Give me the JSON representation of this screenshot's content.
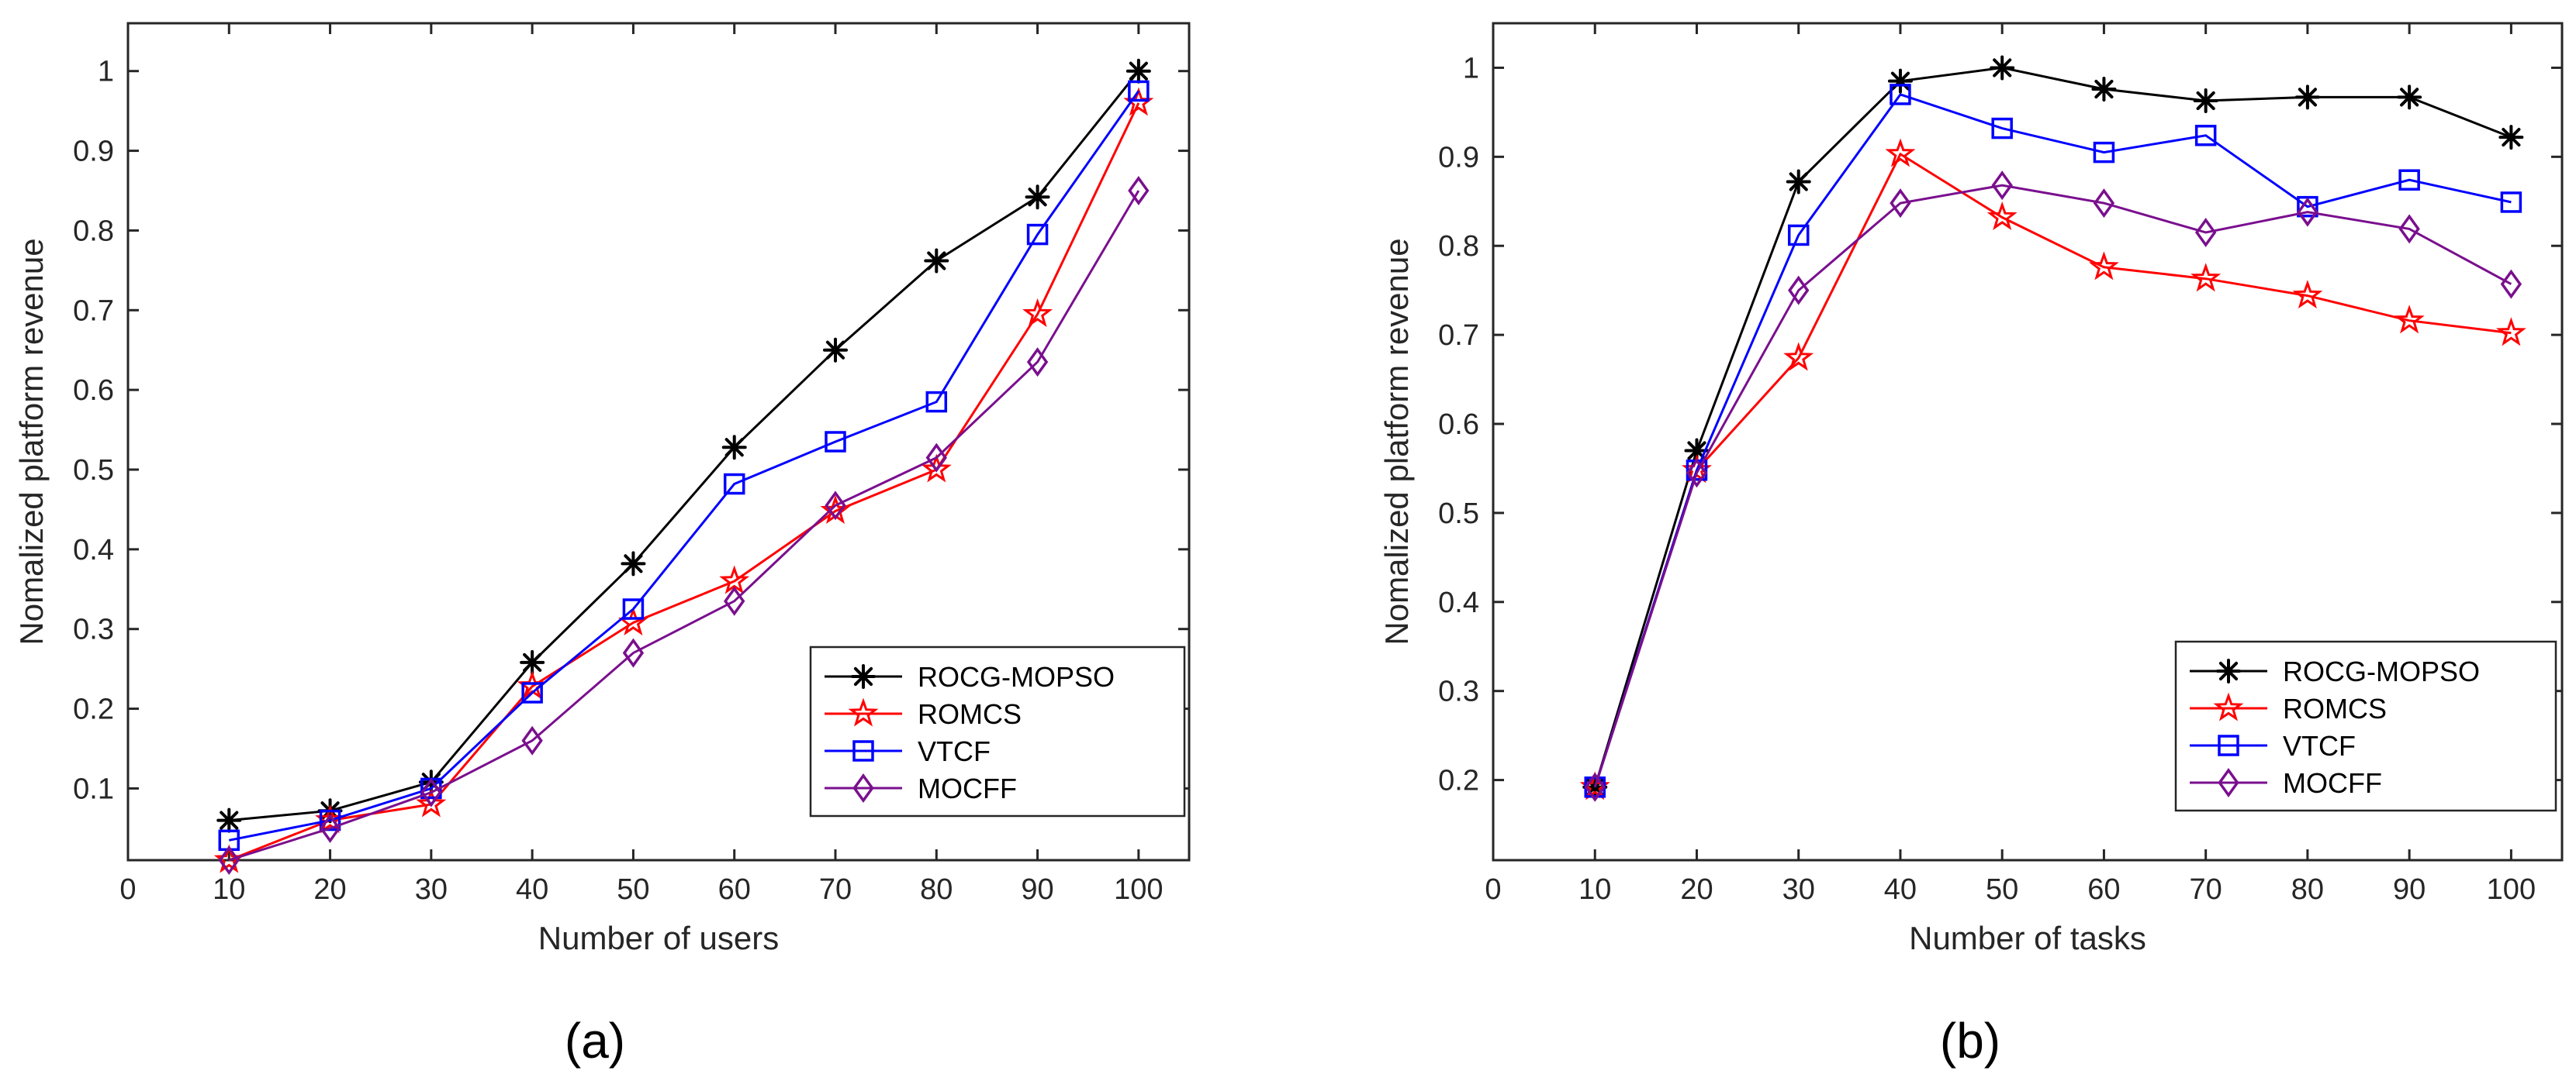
{
  "panels": [
    {
      "type": "line",
      "xlabel": "Number of users",
      "ylabel": "Nomalized platform revenue",
      "caption": "(a)",
      "xlim": [
        0,
        105
      ],
      "ylim": [
        0.01,
        1.06
      ],
      "xticks": [
        0,
        10,
        20,
        30,
        40,
        50,
        60,
        70,
        80,
        90,
        100
      ],
      "yticks": [
        0.1,
        0.2,
        0.3,
        0.4,
        0.5,
        0.6,
        0.7,
        0.8,
        0.9,
        1
      ],
      "x": [
        10,
        20,
        30,
        40,
        50,
        60,
        70,
        80,
        90,
        100
      ],
      "legend_position": "bottom-right",
      "series": [
        {
          "name": "ROCG-MOPSO",
          "color": "#000000",
          "marker": "asterisk",
          "values": [
            0.06,
            0.072,
            0.108,
            0.258,
            0.382,
            0.528,
            0.65,
            0.762,
            0.842,
            1.0
          ]
        },
        {
          "name": "ROMCS",
          "color": "#ff0000",
          "marker": "star",
          "values": [
            0.01,
            0.06,
            0.08,
            0.228,
            0.308,
            0.36,
            0.448,
            0.5,
            0.695,
            0.96
          ]
        },
        {
          "name": "VTCF",
          "color": "#0000ff",
          "marker": "square",
          "values": [
            0.035,
            0.06,
            0.1,
            0.22,
            0.325,
            0.482,
            0.535,
            0.585,
            0.795,
            0.975
          ]
        },
        {
          "name": "MOCFF",
          "color": "#7a0f8e",
          "marker": "diamond",
          "values": [
            0.01,
            0.05,
            0.095,
            0.16,
            0.27,
            0.335,
            0.455,
            0.515,
            0.635,
            0.85
          ]
        }
      ]
    },
    {
      "type": "line",
      "xlabel": "Number of tasks",
      "ylabel": "Nomalized platform revenue",
      "caption": "(b)",
      "xlim": [
        0,
        105
      ],
      "ylim": [
        0.11,
        1.05
      ],
      "xticks": [
        0,
        10,
        20,
        30,
        40,
        50,
        60,
        70,
        80,
        90,
        100
      ],
      "yticks": [
        0.2,
        0.3,
        0.4,
        0.5,
        0.6,
        0.7,
        0.8,
        0.9,
        1
      ],
      "x": [
        10,
        20,
        30,
        40,
        50,
        60,
        70,
        80,
        90,
        100
      ],
      "legend_position": "bottom-right",
      "series": [
        {
          "name": "ROCG-MOPSO",
          "color": "#000000",
          "marker": "asterisk",
          "values": [
            0.192,
            0.57,
            0.872,
            0.985,
            1.0,
            0.976,
            0.963,
            0.967,
            0.967,
            0.922
          ]
        },
        {
          "name": "ROMCS",
          "color": "#ff0000",
          "marker": "star",
          "values": [
            0.192,
            0.548,
            0.674,
            0.903,
            0.832,
            0.776,
            0.763,
            0.744,
            0.716,
            0.702
          ]
        },
        {
          "name": "VTCF",
          "color": "#0000ff",
          "marker": "square",
          "values": [
            0.192,
            0.548,
            0.812,
            0.97,
            0.932,
            0.905,
            0.924,
            0.844,
            0.874,
            0.849
          ]
        },
        {
          "name": "MOCFF",
          "color": "#7a0f8e",
          "marker": "diamond",
          "values": [
            0.192,
            0.545,
            0.75,
            0.848,
            0.868,
            0.848,
            0.815,
            0.838,
            0.819,
            0.757
          ]
        }
      ]
    }
  ]
}
